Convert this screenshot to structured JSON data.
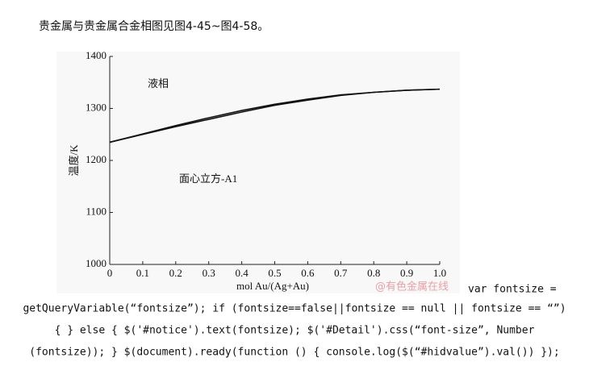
{
  "heading": "贵金属与贵金属合金相图见图4-45~图4-58。",
  "chart_data": {
    "type": "line",
    "y_label": "温度/K",
    "x_label": "mol Au/(Ag+Au)",
    "annotations": [
      "液相",
      "面心立方-A1"
    ],
    "x": [
      0,
      0.1,
      0.2,
      0.3,
      0.4,
      0.5,
      0.6,
      0.7,
      0.8,
      0.9,
      1
    ],
    "series": [
      {
        "color": "#111111",
        "values": [
          1235,
          1251,
          1267,
          1282,
          1296,
          1308,
          1318,
          1326,
          1331,
          1335,
          1337
        ]
      },
      {
        "color": "#111111",
        "values": [
          1235,
          1250,
          1265,
          1279,
          1293,
          1306,
          1316,
          1325,
          1331,
          1335,
          1337
        ]
      }
    ],
    "xlim": [
      0,
      1
    ],
    "ylim": [
      1000,
      1400
    ],
    "xticks": [
      0,
      0.1,
      0.2,
      0.3,
      0.4,
      0.5,
      0.6,
      0.7,
      0.8,
      0.9,
      {
        "value": 1,
        "label": "1.0"
      }
    ],
    "yticks": [
      1000,
      1100,
      1200,
      1300,
      1400
    ]
  },
  "watermark": "@有色金属在线",
  "code_lines": [
    "var fontsize =",
    "getQueryVariable(“fontsize”); if (fontsize==false||fontsize == null || fontsize == “”)",
    "{ } else { $('#notice').text(fontsize); $('#Detail').css(“font-size”, Number",
    "(fontsize)); } $(document).ready(function () { console.log($(“#hidvalue”).val()) });"
  ]
}
